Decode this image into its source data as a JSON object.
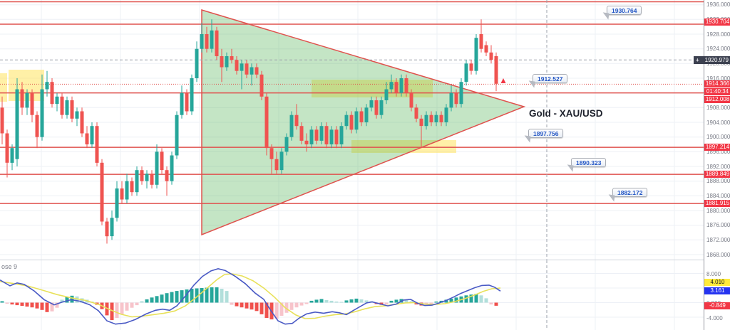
{
  "symbol": {
    "label": "Gold - XAU/USD"
  },
  "chart_data": {
    "type": "candlestick_with_macd",
    "title": "Gold - XAU/USD",
    "price_panel": {
      "y_ticks": [
        "1936.000",
        "1932.000",
        "1928.000",
        "1924.000",
        "1920.000",
        "1916.000",
        "1912.000",
        "1908.000",
        "1904.000",
        "1900.000",
        "1896.000",
        "1892.000",
        "1888.000",
        "1884.000",
        "1880.000",
        "1876.000",
        "1872.000",
        "1868.000"
      ],
      "horizontal_lines": {
        "solid_red": [
          1936.8,
          1930.704,
          1912.008,
          1897.214,
          1889.849,
          1881.915
        ],
        "dotted_red": 1914.366
      },
      "crosshair": {
        "price": 1920.979,
        "x": 767
      },
      "axis_labels": {
        "resistance_top": "1930.704",
        "crosshair_price": "1920.979",
        "last_price": "1914.366",
        "bar_countdown": "01:40:34",
        "level_1912": "1912.008",
        "support_1897": "1897.214",
        "support_1889": "1889.849",
        "support_1881": "1881.915"
      },
      "callouts": [
        {
          "value": "1930.764"
        },
        {
          "value": "1912.527"
        },
        {
          "value": "1897.756"
        },
        {
          "value": "1890.323"
        },
        {
          "value": "1882.172"
        }
      ],
      "candle_x_start": 3,
      "candle_spacing": 7,
      "candles": [
        [
          1908,
          1911,
          1898,
          1901
        ],
        [
          1901,
          1902,
          1889,
          1893
        ],
        [
          1893,
          1898,
          1891,
          1897
        ],
        [
          1894,
          1916,
          1892,
          1913
        ],
        [
          1913,
          1915,
          1906,
          1908
        ],
        [
          1908,
          1913,
          1906,
          1912
        ],
        [
          1912,
          1913,
          1904,
          1906
        ],
        [
          1906,
          1907,
          1897,
          1900
        ],
        [
          1900,
          1917,
          1899,
          1913
        ],
        [
          1913,
          1918,
          1911,
          1915
        ],
        [
          1915,
          1916,
          1908,
          1909
        ],
        [
          1909,
          1912,
          1907,
          1911
        ],
        [
          1911,
          1912,
          1905,
          1906
        ],
        [
          1906,
          1911,
          1905,
          1910
        ],
        [
          1910,
          1911,
          1904,
          1905
        ],
        [
          1905,
          1908,
          1903,
          1907
        ],
        [
          1907,
          1908,
          1900,
          1901
        ],
        [
          1901,
          1903,
          1897,
          1898
        ],
        [
          1898,
          1904,
          1897,
          1903
        ],
        [
          1903,
          1904,
          1892,
          1893
        ],
        [
          1893,
          1894,
          1876,
          1877
        ],
        [
          1877,
          1878,
          1871,
          1873
        ],
        [
          1873,
          1880,
          1872,
          1878
        ],
        [
          1878,
          1888,
          1877,
          1886
        ],
        [
          1886,
          1888,
          1882,
          1883
        ],
        [
          1883,
          1890,
          1882,
          1888
        ],
        [
          1888,
          1889,
          1884,
          1885
        ],
        [
          1885,
          1892,
          1884,
          1891
        ],
        [
          1891,
          1892,
          1887,
          1888
        ],
        [
          1888,
          1891,
          1886,
          1890
        ],
        [
          1890,
          1891,
          1886,
          1887
        ],
        [
          1887,
          1898,
          1886,
          1896
        ],
        [
          1896,
          1897,
          1890,
          1891
        ],
        [
          1891,
          1892,
          1884,
          1888
        ],
        [
          1888,
          1896,
          1887,
          1895
        ],
        [
          1895,
          1907,
          1894,
          1906
        ],
        [
          1906,
          1914,
          1905,
          1912
        ],
        [
          1912,
          1913,
          1906,
          1907
        ],
        [
          1907,
          1917,
          1906,
          1916
        ],
        [
          1916,
          1926,
          1915,
          1924
        ],
        [
          1924,
          1931,
          1923,
          1928
        ],
        [
          1928,
          1930,
          1923,
          1924
        ],
        [
          1924,
          1932,
          1923,
          1929
        ],
        [
          1929,
          1930,
          1921,
          1922
        ],
        [
          1922,
          1924,
          1915,
          1919
        ],
        [
          1919,
          1923,
          1918,
          1922
        ],
        [
          1922,
          1924,
          1920,
          1921
        ],
        [
          1921,
          1922,
          1917,
          1918
        ],
        [
          1918,
          1921,
          1913,
          1920
        ],
        [
          1920,
          1921,
          1916,
          1917
        ],
        [
          1917,
          1920,
          1914,
          1919
        ],
        [
          1919,
          1920,
          1916,
          1917
        ],
        [
          1917,
          1918,
          1910,
          1911
        ],
        [
          1911,
          1912,
          1895,
          1897
        ],
        [
          1897,
          1898,
          1890,
          1894
        ],
        [
          1894,
          1896,
          1890,
          1891
        ],
        [
          1891,
          1897,
          1890,
          1896
        ],
        [
          1896,
          1901,
          1895,
          1900
        ],
        [
          1900,
          1907,
          1899,
          1906
        ],
        [
          1906,
          1909,
          1902,
          1903
        ],
        [
          1903,
          1904,
          1898,
          1899
        ],
        [
          1899,
          1901,
          1896,
          1898
        ],
        [
          1898,
          1903,
          1897,
          1902
        ],
        [
          1902,
          1903,
          1898,
          1899
        ],
        [
          1899,
          1904,
          1898,
          1903
        ],
        [
          1903,
          1904,
          1897,
          1898
        ],
        [
          1898,
          1903,
          1897,
          1902
        ],
        [
          1902,
          1903,
          1897,
          1898
        ],
        [
          1898,
          1904,
          1897,
          1903
        ],
        [
          1903,
          1907,
          1902,
          1906
        ],
        [
          1906,
          1907,
          1901,
          1902
        ],
        [
          1902,
          1908,
          1901,
          1907
        ],
        [
          1907,
          1908,
          1903,
          1904
        ],
        [
          1904,
          1909,
          1903,
          1908
        ],
        [
          1908,
          1911,
          1907,
          1910
        ],
        [
          1910,
          1911,
          1905,
          1906
        ],
        [
          1906,
          1911,
          1905,
          1910
        ],
        [
          1910,
          1915,
          1909,
          1913
        ],
        [
          1913,
          1917,
          1912,
          1915
        ],
        [
          1915,
          1916,
          1911,
          1912
        ],
        [
          1912,
          1917,
          1911,
          1916
        ],
        [
          1916,
          1917,
          1911,
          1912
        ],
        [
          1912,
          1913,
          1907,
          1908
        ],
        [
          1908,
          1909,
          1904,
          1905
        ],
        [
          1905,
          1906,
          1897,
          1903
        ],
        [
          1903,
          1907,
          1902,
          1906
        ],
        [
          1906,
          1907,
          1903,
          1904
        ],
        [
          1904,
          1907,
          1903,
          1906
        ],
        [
          1906,
          1907,
          1903,
          1904
        ],
        [
          1904,
          1909,
          1903,
          1908
        ],
        [
          1908,
          1914,
          1907,
          1912
        ],
        [
          1912,
          1913,
          1908,
          1909
        ],
        [
          1909,
          1916,
          1908,
          1915
        ],
        [
          1915,
          1921,
          1914,
          1920
        ],
        [
          1920,
          1921,
          1917,
          1918
        ],
        [
          1918,
          1928,
          1917,
          1927
        ],
        [
          1928,
          1932,
          1923,
          1924
        ],
        [
          1925,
          1926,
          1922,
          1923
        ],
        [
          1923,
          1925,
          1920,
          1921
        ],
        [
          1922,
          1923,
          1912.5,
          1914.5
        ]
      ],
      "triangle": [
        [
          283,
          14
        ],
        [
          735,
          150
        ],
        [
          283,
          330
        ]
      ],
      "yellow_zones": [
        [
          0,
          103,
          10,
          40
        ],
        [
          12,
          98,
          50,
          44
        ],
        [
          437,
          112,
          170,
          25
        ],
        [
          493,
          197,
          147,
          18
        ]
      ],
      "marker_arrow": {
        "x": 706,
        "y": 113,
        "direction": "up"
      }
    },
    "macd_panel": {
      "settings_label": "ose 9",
      "y_ticks": [
        "8.000",
        "0.000",
        "-4.000"
      ],
      "axis_labels": {
        "signal": "4.010",
        "macd": "3.161",
        "histogram": "-0.849"
      },
      "histogram": [
        0.4,
        -0.3,
        -0.5,
        -0.7,
        -0.9,
        -1.1,
        -1.3,
        -1.6,
        -2.0,
        -2.6,
        -2.4,
        -1.4,
        0.8,
        1.5,
        1.9,
        1.7,
        1.2,
        0.8,
        0.3,
        -0.6,
        -1.8,
        -3.5,
        -4.8,
        -4.2,
        -3.2,
        -2.2,
        -1.4,
        -0.7,
        0.4,
        0.9,
        1.4,
        1.8,
        2.2,
        2.6,
        2.9,
        3.2,
        3.4,
        3.6,
        3.8,
        3.9,
        4.0,
        4.1,
        4.2,
        4.2,
        3.8,
        3.2,
        -0.6,
        -1.0,
        -1.3,
        -1.6,
        -1.9,
        -2.3,
        -3.2,
        -4.2,
        -4.6,
        -4.4,
        -3.6,
        -2.8,
        -2.0,
        -1.3,
        -0.8,
        -0.4,
        0.5,
        0.8,
        1.0,
        0.7,
        0.5,
        0.3,
        0.2,
        0.6,
        0.9,
        1.1,
        0.9,
        0.6,
        0.4,
        -0.4,
        -0.6,
        -0.5,
        0.5,
        0.8,
        1.0,
        0.8,
        0.4,
        -0.5,
        -0.8,
        -0.6,
        -0.3,
        0.3,
        0.5,
        0.8,
        1.1,
        1.4,
        1.7,
        2.0,
        2.2,
        2.4,
        2.0,
        1.2,
        -0.5,
        -0.85
      ],
      "macd_line": [
        [
          0,
          6.2
        ],
        [
          14,
          4.6
        ],
        [
          24,
          5.4
        ],
        [
          34,
          5.0
        ],
        [
          48,
          3.2
        ],
        [
          62,
          0.8
        ],
        [
          76,
          -0.6
        ],
        [
          88,
          0.2
        ],
        [
          100,
          0.8
        ],
        [
          112,
          0.4
        ],
        [
          126,
          -0.6
        ],
        [
          138,
          -2.2
        ],
        [
          150,
          -5.0
        ],
        [
          162,
          -5.9
        ],
        [
          176,
          -5.6
        ],
        [
          190,
          -4.6
        ],
        [
          205,
          -3.1
        ],
        [
          218,
          -2.1
        ],
        [
          228,
          -1.8
        ],
        [
          238,
          -2.1
        ],
        [
          248,
          -0.9
        ],
        [
          260,
          1.8
        ],
        [
          272,
          4.8
        ],
        [
          284,
          7.2
        ],
        [
          296,
          8.7
        ],
        [
          306,
          9.3
        ],
        [
          316,
          8.8
        ],
        [
          330,
          7.2
        ],
        [
          344,
          5.2
        ],
        [
          358,
          2.6
        ],
        [
          370,
          0.9
        ],
        [
          380,
          -2.2
        ],
        [
          390,
          -5.0
        ],
        [
          400,
          -5.9
        ],
        [
          410,
          -5.7
        ],
        [
          420,
          -4.2
        ],
        [
          430,
          -3.1
        ],
        [
          442,
          -2.6
        ],
        [
          454,
          -2.9
        ],
        [
          466,
          -2.5
        ],
        [
          476,
          -2.8
        ],
        [
          486,
          -3.3
        ],
        [
          496,
          -2.1
        ],
        [
          506,
          -1.0
        ],
        [
          514,
          -0.1
        ],
        [
          522,
          0.2
        ],
        [
          532,
          -0.3
        ],
        [
          544,
          -0.9
        ],
        [
          556,
          -0.4
        ],
        [
          566,
          0.7
        ],
        [
          576,
          0.9
        ],
        [
          586,
          -0.2
        ],
        [
          596,
          -0.8
        ],
        [
          606,
          -0.7
        ],
        [
          616,
          -0.1
        ],
        [
          626,
          0.6
        ],
        [
          636,
          1.5
        ],
        [
          646,
          2.5
        ],
        [
          656,
          3.3
        ],
        [
          666,
          4.1
        ],
        [
          676,
          4.7
        ],
        [
          686,
          4.8
        ],
        [
          694,
          4.2
        ],
        [
          702,
          3.16
        ]
      ],
      "signal_line": [
        [
          0,
          5.8
        ],
        [
          20,
          5.2
        ],
        [
          40,
          4.5
        ],
        [
          60,
          3.4
        ],
        [
          80,
          2.2
        ],
        [
          100,
          1.3
        ],
        [
          120,
          0.6
        ],
        [
          140,
          -0.6
        ],
        [
          155,
          -2.0
        ],
        [
          170,
          -3.2
        ],
        [
          185,
          -3.9
        ],
        [
          200,
          -3.7
        ],
        [
          215,
          -3.3
        ],
        [
          230,
          -2.9
        ],
        [
          245,
          -2.3
        ],
        [
          260,
          -0.9
        ],
        [
          275,
          1.4
        ],
        [
          290,
          3.9
        ],
        [
          305,
          6.4
        ],
        [
          315,
          7.7
        ],
        [
          325,
          7.9
        ],
        [
          340,
          7.3
        ],
        [
          355,
          6.0
        ],
        [
          370,
          4.0
        ],
        [
          385,
          1.5
        ],
        [
          400,
          -1.4
        ],
        [
          415,
          -3.4
        ],
        [
          428,
          -4.4
        ],
        [
          442,
          -4.3
        ],
        [
          456,
          -3.7
        ],
        [
          470,
          -3.3
        ],
        [
          484,
          -3.1
        ],
        [
          498,
          -2.5
        ],
        [
          512,
          -1.7
        ],
        [
          526,
          -1.1
        ],
        [
          540,
          -0.9
        ],
        [
          554,
          -0.5
        ],
        [
          568,
          -0.1
        ],
        [
          582,
          0.0
        ],
        [
          596,
          -0.4
        ],
        [
          610,
          -0.5
        ],
        [
          624,
          -0.3
        ],
        [
          638,
          0.3
        ],
        [
          652,
          1.1
        ],
        [
          666,
          2.1
        ],
        [
          678,
          3.1
        ],
        [
          690,
          3.8
        ],
        [
          702,
          4.01
        ]
      ]
    },
    "colors": {
      "candle_up": "#26a69a",
      "candle_down": "#ef5350",
      "line_red": "#e0524e",
      "triangle_fill": "rgba(76,175,80,0.33)",
      "zone_yellow": "rgba(255,228,94,0.55)",
      "grid": "#edf0f6",
      "crosshair": "#9ba0ab",
      "macd_line_color": "#4a5ac5",
      "signal_line_color": "#e8e15a",
      "hist_up": "#26a69a",
      "hist_up_light": "#b2dfdb",
      "hist_down": "#f0504c",
      "hist_down_light": "#f7c4cb",
      "axis_label_red": "#f23645",
      "axis_label_dark": "#3c4150",
      "axis_label_yellow": "#ffeb3b",
      "axis_label_blue": "#2433f0"
    }
  }
}
